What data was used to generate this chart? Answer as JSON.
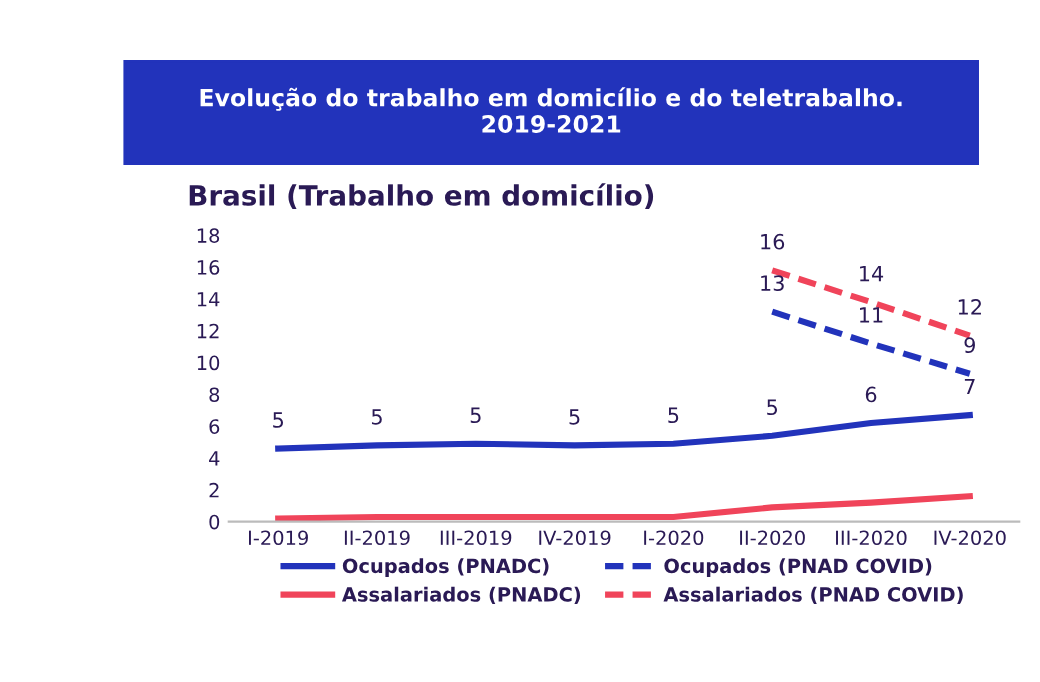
{
  "chart_data": {
    "type": "line",
    "title": "Evolução do trabalho em domicílio e do teletrabalho.\n2019-2021",
    "subtitle": "Brasil (Trabalho em domicílio)",
    "categories": [
      "I-2019",
      "II-2019",
      "III-2019",
      "IV-2019",
      "I-2020",
      "II-2020",
      "III-2020",
      "IV-2020"
    ],
    "series": [
      {
        "name": "Ocupados (PNADC)",
        "color": "#2233bb",
        "line_style": "solid",
        "values": [
          4.6,
          4.8,
          4.9,
          4.8,
          4.9,
          5.4,
          6.2,
          6.7
        ],
        "value_labels": [
          "5",
          "5",
          "5",
          "5",
          "5",
          "5",
          "6",
          "7"
        ]
      },
      {
        "name": "Ocupados (PNAD COVID)",
        "color": "#2233bb",
        "line_style": "dashed",
        "values": [
          null,
          null,
          null,
          null,
          null,
          13.2,
          11.2,
          9.3
        ],
        "value_labels": [
          null,
          null,
          null,
          null,
          null,
          "13",
          "11",
          "9"
        ]
      },
      {
        "name": "Assalariados (PNADC)",
        "color": "#f0445a",
        "line_style": "solid",
        "values": [
          0.2,
          0.3,
          0.3,
          0.3,
          0.3,
          0.9,
          1.2,
          1.6
        ]
      },
      {
        "name": "Assalariados (PNAD COVID)",
        "color": "#f0445a",
        "line_style": "dashed",
        "values": [
          null,
          null,
          null,
          null,
          null,
          15.8,
          13.8,
          11.7
        ],
        "value_labels": [
          null,
          null,
          null,
          null,
          null,
          "16",
          "14",
          "12"
        ]
      }
    ],
    "ylim": [
      0,
      18
    ],
    "yticks": [
      0,
      2,
      4,
      6,
      8,
      10,
      12,
      14,
      16,
      18
    ],
    "grid": false,
    "legend": "bottom",
    "marker": "none"
  }
}
